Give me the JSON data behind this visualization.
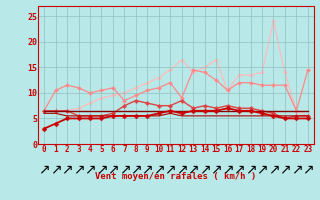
{
  "xlabel": "Vent moyen/en rafales ( km/h )",
  "xlim": [
    -0.5,
    23.5
  ],
  "ylim": [
    0,
    27
  ],
  "yticks": [
    0,
    5,
    10,
    15,
    20,
    25
  ],
  "xticks": [
    0,
    1,
    2,
    3,
    4,
    5,
    6,
    7,
    8,
    9,
    10,
    11,
    12,
    13,
    14,
    15,
    16,
    17,
    18,
    19,
    20,
    21,
    22,
    23
  ],
  "background_color": "#b8e8e8",
  "grid_color": "#90c0c0",
  "lines": [
    {
      "x": [
        0,
        1,
        2,
        3,
        4,
        5,
        6,
        7,
        8,
        9,
        10,
        11,
        12,
        13,
        14,
        15,
        16,
        17,
        18,
        19,
        20,
        21,
        22,
        23
      ],
      "y": [
        6.5,
        6.5,
        6.5,
        7.0,
        8.0,
        9.0,
        9.5,
        10.0,
        11.0,
        12.0,
        13.0,
        14.5,
        16.5,
        14.0,
        15.0,
        16.5,
        10.5,
        13.5,
        13.5,
        14.0,
        24.0,
        14.0,
        6.5,
        5.5
      ],
      "color": "#ffbbbb",
      "lw": 0.9,
      "marker": "D",
      "ms": 2.0,
      "zorder": 1
    },
    {
      "x": [
        0,
        1,
        2,
        3,
        4,
        5,
        6,
        7,
        8,
        9,
        10,
        11,
        12,
        13,
        14,
        15,
        16,
        17,
        18,
        19,
        20,
        21,
        22,
        23
      ],
      "y": [
        6.5,
        10.5,
        11.5,
        11.0,
        10.0,
        10.5,
        11.0,
        8.5,
        9.5,
        10.5,
        11.0,
        12.0,
        9.0,
        14.5,
        14.0,
        12.5,
        10.5,
        12.0,
        12.0,
        11.5,
        11.5,
        11.5,
        6.5,
        14.5
      ],
      "color": "#ff8888",
      "lw": 0.9,
      "marker": "D",
      "ms": 2.0,
      "zorder": 2
    },
    {
      "x": [
        0,
        1,
        2,
        3,
        4,
        5,
        6,
        7,
        8,
        9,
        10,
        11,
        12,
        13,
        14,
        15,
        16,
        17,
        18,
        19,
        20,
        21,
        22,
        23
      ],
      "y": [
        6.5,
        6.5,
        6.5,
        5.5,
        5.5,
        5.5,
        6.0,
        7.5,
        8.5,
        8.0,
        7.5,
        7.5,
        8.5,
        7.0,
        7.5,
        7.0,
        7.5,
        7.0,
        7.0,
        6.5,
        6.0,
        5.0,
        5.5,
        5.5
      ],
      "color": "#dd4444",
      "lw": 1.0,
      "marker": "D",
      "ms": 2.2,
      "zorder": 3
    },
    {
      "x": [
        0,
        1,
        2,
        3,
        4,
        5,
        6,
        7,
        8,
        9,
        10,
        11,
        12,
        13,
        14,
        15,
        16,
        17,
        18,
        19,
        20,
        21,
        22,
        23
      ],
      "y": [
        3.0,
        4.0,
        5.0,
        5.0,
        5.0,
        5.0,
        5.5,
        5.5,
        5.5,
        5.5,
        6.0,
        6.5,
        6.0,
        6.5,
        6.5,
        6.5,
        7.0,
        6.5,
        6.5,
        6.0,
        5.5,
        5.0,
        5.0,
        5.0
      ],
      "color": "#cc0000",
      "lw": 1.3,
      "marker": "D",
      "ms": 2.5,
      "zorder": 5
    },
    {
      "x": [
        0,
        1,
        2,
        3,
        4,
        5,
        6,
        7,
        8,
        9,
        10,
        11,
        12,
        13,
        14,
        15,
        16,
        17,
        18,
        19,
        20,
        21,
        22,
        23
      ],
      "y": [
        6.5,
        6.5,
        6.5,
        6.5,
        6.5,
        6.5,
        6.5,
        6.5,
        6.5,
        6.5,
        6.5,
        6.5,
        6.5,
        6.5,
        6.5,
        6.5,
        6.5,
        6.5,
        6.5,
        6.5,
        6.5,
        6.5,
        6.5,
        6.5
      ],
      "color": "#880000",
      "lw": 1.0,
      "marker": null,
      "ms": 0,
      "zorder": 4
    },
    {
      "x": [
        0,
        1,
        2,
        3,
        4,
        5,
        6,
        7,
        8,
        9,
        10,
        11,
        12,
        13,
        14,
        15,
        16,
        17,
        18,
        19,
        20,
        21,
        22,
        23
      ],
      "y": [
        6.0,
        6.0,
        5.5,
        5.5,
        5.5,
        5.5,
        5.5,
        5.5,
        5.5,
        5.5,
        5.5,
        6.0,
        5.5,
        5.5,
        5.5,
        5.5,
        5.5,
        5.5,
        5.5,
        5.5,
        5.5,
        5.5,
        5.5,
        5.5
      ],
      "color": "#aa0000",
      "lw": 0.8,
      "marker": null,
      "ms": 0,
      "zorder": 4
    }
  ],
  "arrow_color": "#cc0000",
  "tick_fontsize": 5.5,
  "xlabel_fontsize": 6.5,
  "tick_color": "#cc0000"
}
